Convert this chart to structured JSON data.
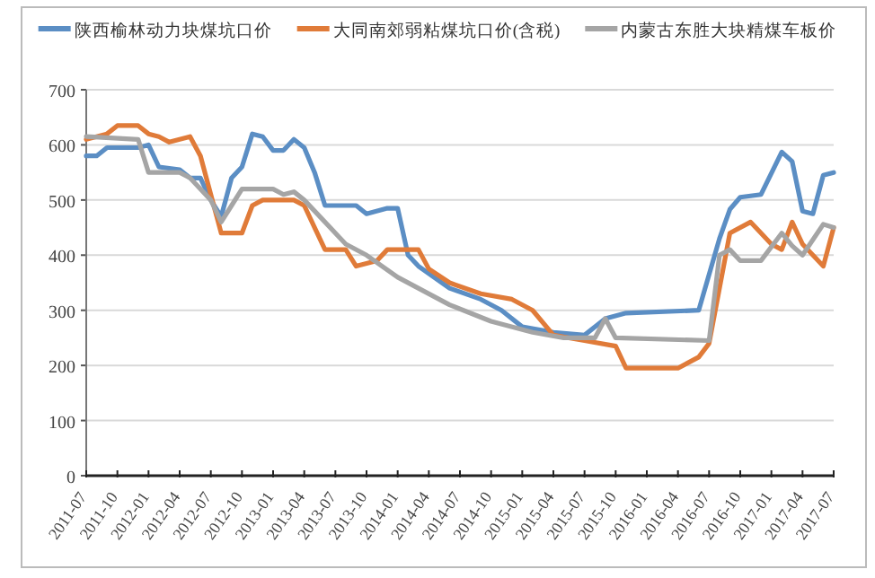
{
  "chart_data": {
    "type": "line",
    "legend": "top",
    "grid": "y",
    "marker": "none",
    "line_style": "solid",
    "xlim": [
      "2011-07",
      "2017-07"
    ],
    "xticks": [
      "2011-07",
      "2011-10",
      "2012-01",
      "2012-04",
      "2012-07",
      "2012-10",
      "2013-01",
      "2013-04",
      "2013-07",
      "2013-10",
      "2014-01",
      "2014-04",
      "2014-07",
      "2014-10",
      "2015-01",
      "2015-04",
      "2015-07",
      "2015-10",
      "2016-01",
      "2016-04",
      "2016-07",
      "2016-10",
      "2017-01",
      "2017-04",
      "2017-07"
    ],
    "ylim": [
      0,
      700
    ],
    "yticks": [
      0,
      100,
      200,
      300,
      400,
      500,
      600,
      700
    ],
    "series": [
      {
        "name": "陕西榆林动力块煤坑口价",
        "color": "#5b8ec4",
        "x": [
          "2011-07",
          "2011-08",
          "2011-09",
          "2011-12",
          "2012-01",
          "2012-02",
          "2012-04",
          "2012-05",
          "2012-06",
          "2012-07",
          "2012-08",
          "2012-09",
          "2012-10",
          "2012-11",
          "2012-12",
          "2013-01",
          "2013-02",
          "2013-03",
          "2013-04",
          "2013-05",
          "2013-06",
          "2013-09",
          "2013-10",
          "2013-12",
          "2014-01",
          "2014-02",
          "2014-03",
          "2014-06",
          "2014-09",
          "2014-11",
          "2015-01",
          "2015-04",
          "2015-07",
          "2015-09",
          "2015-11",
          "2016-06",
          "2016-08",
          "2016-09",
          "2016-10",
          "2016-12",
          "2017-02",
          "2017-03",
          "2017-04",
          "2017-05",
          "2017-06",
          "2017-07"
        ],
        "values": [
          580,
          580,
          595,
          595,
          600,
          560,
          555,
          540,
          540,
          500,
          470,
          540,
          560,
          620,
          615,
          590,
          590,
          610,
          595,
          550,
          490,
          490,
          475,
          485,
          485,
          400,
          380,
          340,
          320,
          300,
          270,
          260,
          255,
          285,
          295,
          300,
          430,
          483,
          505,
          510,
          587,
          570,
          480,
          475,
          545,
          550
        ]
      },
      {
        "name": "大同南郊弱粘煤坑口价(含税)",
        "color": "#e07b39",
        "x": [
          "2011-07",
          "2011-08",
          "2011-09",
          "2011-10",
          "2011-12",
          "2012-01",
          "2012-02",
          "2012-03",
          "2012-05",
          "2012-06",
          "2012-07",
          "2012-08",
          "2012-10",
          "2012-11",
          "2012-12",
          "2013-03",
          "2013-04",
          "2013-05",
          "2013-06",
          "2013-08",
          "2013-09",
          "2013-11",
          "2013-12",
          "2014-03",
          "2014-04",
          "2014-06",
          "2014-09",
          "2014-12",
          "2015-02",
          "2015-04",
          "2015-07",
          "2015-10",
          "2015-11",
          "2016-04",
          "2016-06",
          "2016-07",
          "2016-09",
          "2016-11",
          "2017-01",
          "2017-02",
          "2017-03",
          "2017-04",
          "2017-06",
          "2017-07"
        ],
        "values": [
          610,
          615,
          620,
          635,
          635,
          620,
          615,
          605,
          615,
          580,
          510,
          440,
          440,
          490,
          500,
          500,
          490,
          450,
          410,
          410,
          380,
          390,
          410,
          410,
          375,
          350,
          330,
          320,
          300,
          255,
          245,
          235,
          195,
          195,
          215,
          240,
          440,
          460,
          420,
          410,
          460,
          420,
          380,
          450
        ]
      },
      {
        "name": "内蒙古东胜大块精煤车板价",
        "color": "#a5a5a5",
        "x": [
          "2011-07",
          "2011-12",
          "2012-01",
          "2012-04",
          "2012-05",
          "2012-07",
          "2012-08",
          "2012-09",
          "2012-10",
          "2013-01",
          "2013-02",
          "2013-03",
          "2013-04",
          "2013-05",
          "2013-07",
          "2013-08",
          "2013-10",
          "2014-01",
          "2014-06",
          "2014-10",
          "2015-02",
          "2015-05",
          "2015-08",
          "2015-09",
          "2015-10",
          "2016-07",
          "2016-08",
          "2016-09",
          "2016-10",
          "2016-12",
          "2017-02",
          "2017-03",
          "2017-04",
          "2017-06",
          "2017-07"
        ],
        "values": [
          615,
          610,
          550,
          550,
          540,
          500,
          460,
          490,
          520,
          520,
          510,
          515,
          500,
          480,
          440,
          420,
          400,
          360,
          310,
          280,
          260,
          250,
          250,
          285,
          250,
          245,
          400,
          410,
          390,
          390,
          440,
          417,
          400,
          456,
          450
        ]
      }
    ]
  }
}
